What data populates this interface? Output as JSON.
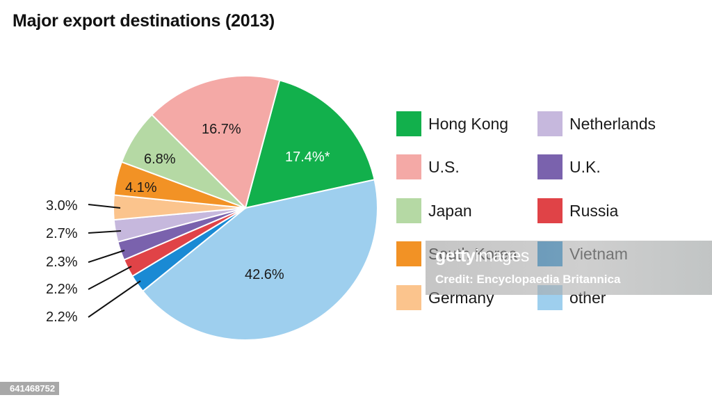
{
  "chart_data": {
    "type": "pie",
    "title": "Major export destinations (2013)",
    "categories": [
      "Hong Kong",
      "U.S.",
      "Japan",
      "South Korea",
      "Germany",
      "Netherlands",
      "U.K.",
      "Russia",
      "Vietnam",
      "other"
    ],
    "values": [
      17.4,
      16.7,
      6.8,
      4.1,
      3.0,
      2.7,
      2.3,
      2.2,
      2.2,
      42.6
    ],
    "labels": [
      "17.4%*",
      "16.7%",
      "6.8%",
      "4.1%",
      "3.0%",
      "2.7%",
      "2.3%",
      "2.2%",
      "2.2%",
      "42.6%"
    ],
    "colors": [
      "#12b04c",
      "#f4a9a6",
      "#b5d9a4",
      "#f29225",
      "#fbc48d",
      "#c6b8dd",
      "#7a62ad",
      "#e04347",
      "#1a8ad4",
      "#9ecfee"
    ],
    "legend_position": "right",
    "unit": "%"
  },
  "title": "Major export destinations (2013)",
  "inside_labels": {
    "hong_kong": "17.4%*",
    "us": "16.7%",
    "japan": "6.8%",
    "south_korea": "4.1%",
    "other": "42.6%"
  },
  "outside_labels": {
    "germany": "3.0%",
    "netherlands": "2.7%",
    "uk": "2.3%",
    "russia": "2.2%",
    "vietnam": "2.2%"
  },
  "legend": {
    "items": [
      {
        "label": "Hong Kong",
        "color": "#12b04c"
      },
      {
        "label": "U.S.",
        "color": "#f4a9a6"
      },
      {
        "label": "Japan",
        "color": "#b5d9a4"
      },
      {
        "label": "South Korea",
        "color": "#f29225"
      },
      {
        "label": "Germany",
        "color": "#fbc48d"
      },
      {
        "label": "Netherlands",
        "color": "#c6b8dd"
      },
      {
        "label": "U.K.",
        "color": "#7a62ad"
      },
      {
        "label": "Russia",
        "color": "#e04347"
      },
      {
        "label": "Vietnam",
        "color": "#1a8ad4"
      },
      {
        "label": "other",
        "color": "#9ecfee"
      }
    ]
  },
  "watermark": {
    "brand_bold": "getty",
    "brand_thin": "images",
    "credit": "Credit: Encyclopaedia Britannica"
  },
  "image_id": "641468752"
}
